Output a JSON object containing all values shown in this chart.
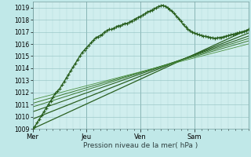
{
  "xlabel": "Pression niveau de la mer( hPa )",
  "bg_color": "#c0e8e8",
  "plot_bg_color": "#d0eeee",
  "grid_color_major": "#90c0c0",
  "grid_color_minor": "#b0d8d8",
  "ylim": [
    1009,
    1019.5
  ],
  "xlim": [
    0,
    192
  ],
  "yticks": [
    1009,
    1010,
    1011,
    1012,
    1013,
    1014,
    1015,
    1016,
    1017,
    1018,
    1019
  ],
  "day_labels": [
    "Mer",
    "Jeu",
    "Ven",
    "Sam"
  ],
  "day_positions": [
    0,
    48,
    96,
    144
  ],
  "total_hours": 192,
  "main_series": {
    "x": [
      0,
      2,
      4,
      6,
      8,
      10,
      12,
      14,
      16,
      18,
      20,
      22,
      24,
      26,
      28,
      30,
      32,
      34,
      36,
      38,
      40,
      42,
      44,
      46,
      48,
      50,
      52,
      54,
      56,
      58,
      60,
      62,
      64,
      66,
      68,
      70,
      72,
      74,
      76,
      78,
      80,
      82,
      84,
      86,
      88,
      90,
      92,
      94,
      96,
      98,
      100,
      102,
      104,
      106,
      108,
      110,
      112,
      114,
      116,
      118,
      120,
      122,
      124,
      126,
      128,
      130,
      132,
      134,
      136,
      138,
      140,
      142,
      144,
      146,
      148,
      150,
      152,
      154,
      156,
      158,
      160,
      162,
      164,
      166,
      168,
      170,
      172,
      174,
      176,
      178,
      180,
      182,
      184,
      186,
      188,
      190,
      192
    ],
    "y": [
      1009.0,
      1009.2,
      1009.5,
      1009.8,
      1010.1,
      1010.4,
      1010.7,
      1011.0,
      1011.3,
      1011.6,
      1011.9,
      1012.1,
      1012.3,
      1012.6,
      1012.9,
      1013.2,
      1013.5,
      1013.8,
      1014.1,
      1014.4,
      1014.7,
      1015.0,
      1015.3,
      1015.5,
      1015.7,
      1015.9,
      1016.1,
      1016.3,
      1016.5,
      1016.6,
      1016.7,
      1016.8,
      1017.0,
      1017.1,
      1017.2,
      1017.2,
      1017.3,
      1017.4,
      1017.5,
      1017.5,
      1017.6,
      1017.7,
      1017.7,
      1017.8,
      1017.9,
      1018.0,
      1018.1,
      1018.2,
      1018.3,
      1018.4,
      1018.5,
      1018.65,
      1018.7,
      1018.8,
      1018.9,
      1019.0,
      1019.1,
      1019.15,
      1019.2,
      1019.1,
      1019.0,
      1018.85,
      1018.7,
      1018.5,
      1018.3,
      1018.1,
      1017.85,
      1017.6,
      1017.4,
      1017.25,
      1017.1,
      1017.0,
      1016.9,
      1016.82,
      1016.75,
      1016.7,
      1016.65,
      1016.62,
      1016.6,
      1016.55,
      1016.5,
      1016.48,
      1016.5,
      1016.52,
      1016.55,
      1016.6,
      1016.65,
      1016.7,
      1016.75,
      1016.8,
      1016.85,
      1016.9,
      1016.95,
      1017.0,
      1017.05,
      1017.1,
      1017.2
    ],
    "color": "#2a6020",
    "lw": 1.0,
    "marker": "+",
    "ms": 3.0,
    "mew": 0.8
  },
  "straight_lines": [
    {
      "x0": 0,
      "y0": 1009.0,
      "x1": 192,
      "y1": 1017.2,
      "color": "#2a6020",
      "lw": 0.9
    },
    {
      "x0": 0,
      "y0": 1009.8,
      "x1": 192,
      "y1": 1016.9,
      "color": "#2a6020",
      "lw": 0.9
    },
    {
      "x0": 0,
      "y0": 1010.4,
      "x1": 192,
      "y1": 1016.65,
      "color": "#2a6020",
      "lw": 0.8
    },
    {
      "x0": 0,
      "y0": 1010.8,
      "x1": 192,
      "y1": 1016.45,
      "color": "#3a7830",
      "lw": 0.7
    },
    {
      "x0": 0,
      "y0": 1011.1,
      "x1": 192,
      "y1": 1016.25,
      "color": "#3a7830",
      "lw": 0.7
    },
    {
      "x0": 0,
      "y0": 1011.4,
      "x1": 192,
      "y1": 1016.0,
      "color": "#4a9040",
      "lw": 0.6
    }
  ]
}
